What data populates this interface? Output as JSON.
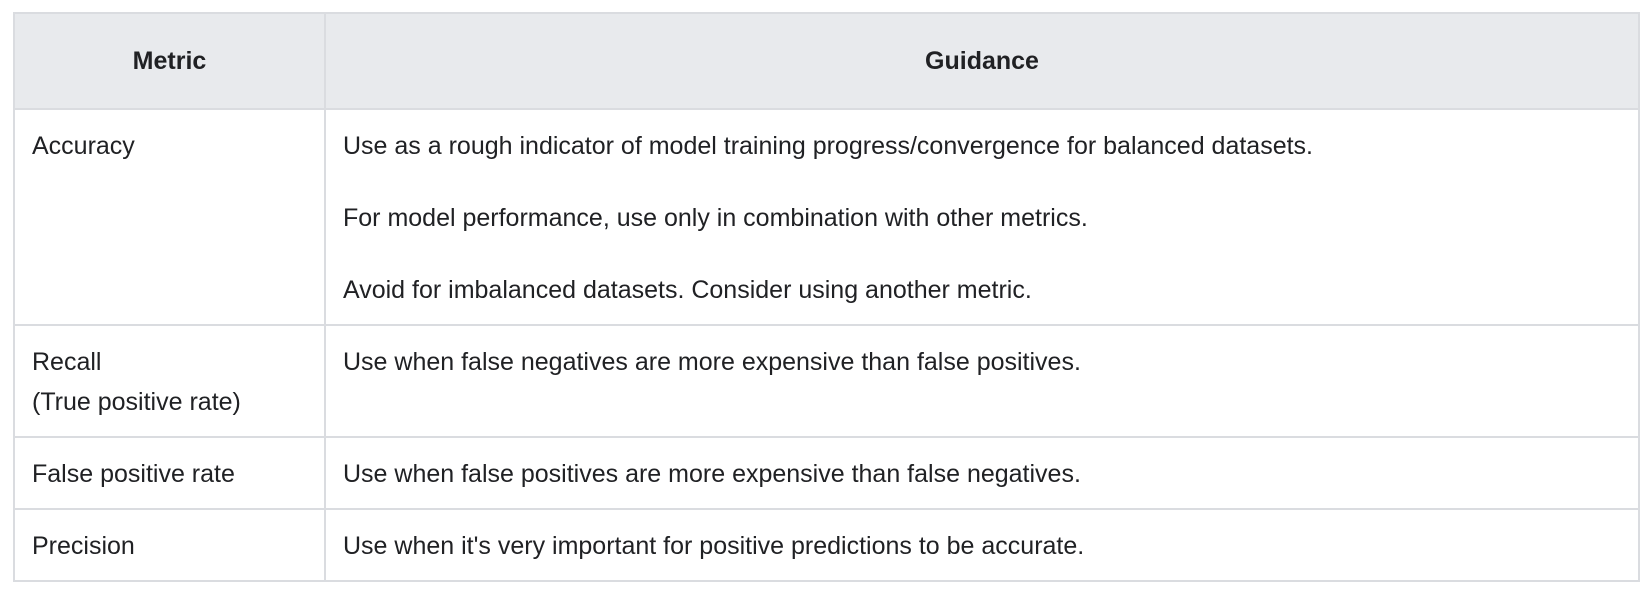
{
  "table": {
    "headers": {
      "metric": "Metric",
      "guidance": "Guidance"
    },
    "rows": [
      {
        "metric": "Accuracy",
        "guidance": [
          "Use as a rough indicator of model training progress/convergence for balanced datasets.",
          "For model performance, use only in combination with other metrics.",
          "Avoid for imbalanced datasets. Consider using another metric."
        ]
      },
      {
        "metric": "Recall",
        "metric_sub": "(True positive rate)",
        "guidance": [
          "Use when false negatives are more expensive than false positives."
        ]
      },
      {
        "metric": "False positive rate",
        "guidance": [
          "Use when false positives are more expensive than false negatives."
        ]
      },
      {
        "metric": "Precision",
        "guidance": [
          "Use when it's very important for positive predictions to be accurate."
        ]
      }
    ]
  }
}
